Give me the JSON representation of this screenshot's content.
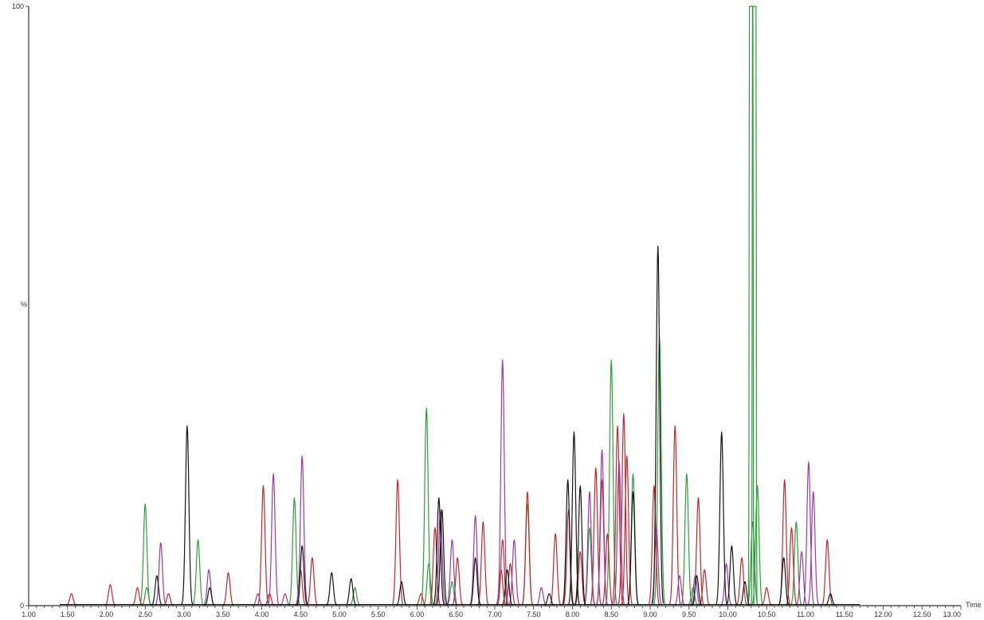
{
  "chart_data": {
    "type": "line",
    "title": "",
    "xlabel": "Time",
    "ylabel": "%",
    "xlim": [
      1.0,
      13.0
    ],
    "ylim": [
      0,
      100
    ],
    "x_ticks": [
      "1.00",
      "1.50",
      "2.00",
      "2.50",
      "3.00",
      "3.50",
      "4.00",
      "4.50",
      "5.00",
      "5.50",
      "6.00",
      "6.50",
      "7.00",
      "7.50",
      "8.00",
      "8.50",
      "9.00",
      "9.50",
      "10.00",
      "10.50",
      "11.00",
      "11.50",
      "12.00",
      "12.50",
      "13.00"
    ],
    "y_ticks": [
      "0",
      "100"
    ],
    "grid": false,
    "legend": "none",
    "series": [
      {
        "color": "#2e9e3a",
        "peaks": [
          [
            2.5,
            17
          ],
          [
            2.52,
            3
          ],
          [
            3.18,
            11
          ],
          [
            4.42,
            18
          ],
          [
            5.2,
            3
          ],
          [
            6.12,
            33
          ],
          [
            6.15,
            7
          ],
          [
            6.45,
            4
          ],
          [
            7.42,
            17
          ],
          [
            8.22,
            13
          ],
          [
            8.5,
            41
          ],
          [
            8.78,
            22
          ],
          [
            9.12,
            45
          ],
          [
            9.47,
            22
          ],
          [
            9.55,
            3
          ],
          [
            10.3,
            100
          ],
          [
            10.34,
            100
          ],
          [
            10.38,
            20
          ],
          [
            10.88,
            14
          ],
          [
            10.32,
            14
          ]
        ]
      },
      {
        "color": "#c0282a",
        "peaks": [
          [
            1.55,
            2
          ],
          [
            2.05,
            3.5
          ],
          [
            2.4,
            3
          ],
          [
            2.8,
            2
          ],
          [
            3.57,
            5.5
          ],
          [
            4.02,
            20
          ],
          [
            4.1,
            2
          ],
          [
            4.5,
            6
          ],
          [
            4.65,
            8
          ],
          [
            5.75,
            21
          ],
          [
            6.05,
            2
          ],
          [
            6.23,
            13
          ],
          [
            6.52,
            8
          ],
          [
            6.85,
            14
          ],
          [
            7.08,
            6
          ],
          [
            7.1,
            11
          ],
          [
            7.2,
            7
          ],
          [
            7.42,
            19
          ],
          [
            7.78,
            12
          ],
          [
            7.95,
            16
          ],
          [
            8.1,
            9
          ],
          [
            8.3,
            23
          ],
          [
            8.38,
            21
          ],
          [
            8.45,
            12
          ],
          [
            8.58,
            30
          ],
          [
            8.66,
            32
          ],
          [
            8.7,
            25
          ],
          [
            9.05,
            20
          ],
          [
            9.32,
            30
          ],
          [
            9.62,
            18
          ],
          [
            9.7,
            6
          ],
          [
            10.18,
            8
          ],
          [
            10.5,
            3
          ],
          [
            10.73,
            21
          ],
          [
            10.82,
            13
          ],
          [
            11.28,
            11
          ]
        ]
      },
      {
        "color": "#9b3aa6",
        "peaks": [
          [
            2.7,
            10.5
          ],
          [
            3.32,
            6
          ],
          [
            3.95,
            2
          ],
          [
            4.15,
            22
          ],
          [
            4.3,
            2
          ],
          [
            4.52,
            25
          ],
          [
            6.3,
            16
          ],
          [
            6.45,
            11
          ],
          [
            6.75,
            15
          ],
          [
            7.1,
            41
          ],
          [
            7.25,
            11
          ],
          [
            7.6,
            3
          ],
          [
            8.22,
            19
          ],
          [
            8.38,
            26
          ],
          [
            8.6,
            24
          ],
          [
            9.08,
            13
          ],
          [
            9.38,
            5
          ],
          [
            9.58,
            5
          ],
          [
            9.98,
            7
          ],
          [
            10.95,
            9
          ],
          [
            11.04,
            24
          ],
          [
            11.1,
            19
          ]
        ]
      },
      {
        "color": "#141414",
        "peaks": [
          [
            2.65,
            5
          ],
          [
            3.04,
            30
          ],
          [
            3.33,
            3
          ],
          [
            4.52,
            10
          ],
          [
            4.9,
            5.5
          ],
          [
            5.15,
            4.5
          ],
          [
            5.8,
            4
          ],
          [
            6.28,
            18
          ],
          [
            6.32,
            16
          ],
          [
            6.75,
            8
          ],
          [
            7.16,
            6
          ],
          [
            7.7,
            2
          ],
          [
            7.94,
            21
          ],
          [
            8.02,
            29
          ],
          [
            8.1,
            20
          ],
          [
            8.78,
            19
          ],
          [
            9.1,
            60
          ],
          [
            9.6,
            5
          ],
          [
            9.92,
            29
          ],
          [
            10.05,
            10
          ],
          [
            10.22,
            4
          ],
          [
            10.72,
            8
          ],
          [
            11.32,
            2
          ]
        ]
      }
    ]
  }
}
